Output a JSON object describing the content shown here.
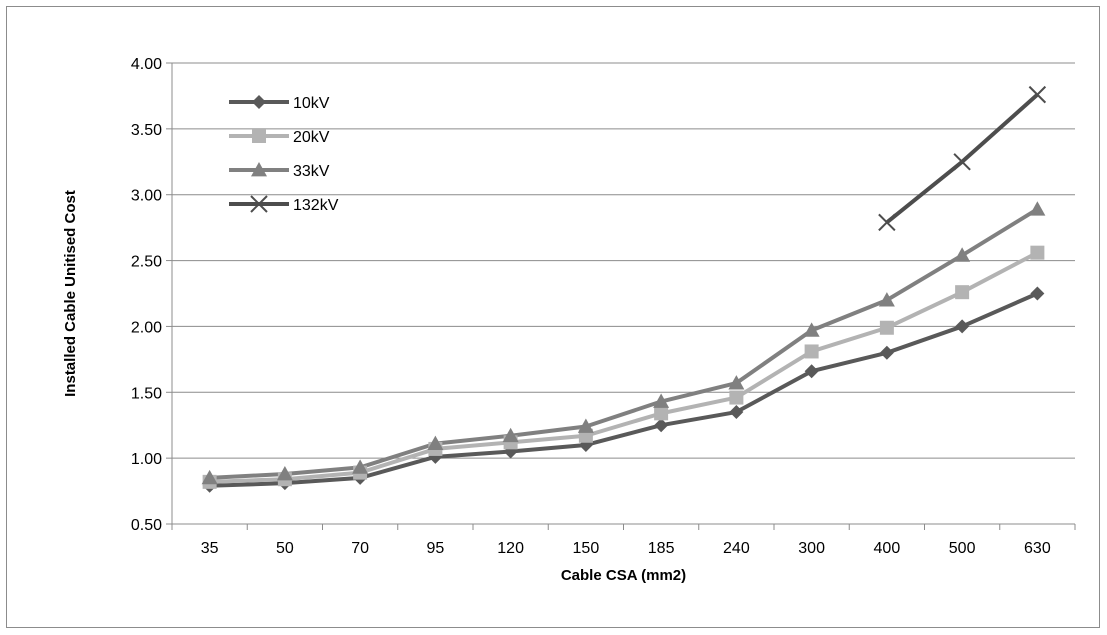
{
  "chart_data": {
    "type": "line",
    "categories": [
      "35",
      "50",
      "70",
      "95",
      "120",
      "150",
      "185",
      "240",
      "300",
      "400",
      "500",
      "630"
    ],
    "xlabel": "Cable CSA (mm2)",
    "ylabel": "Installed Cable Unitised Cost",
    "ylim": [
      0.5,
      4.0
    ],
    "yticks": [
      "0.50",
      "1.00",
      "1.50",
      "2.00",
      "2.50",
      "3.00",
      "3.50",
      "4.00"
    ],
    "grid": true,
    "legend": "top-left",
    "series": [
      {
        "name": "10kV",
        "color": "#595959",
        "marker": "diamond",
        "values": [
          0.79,
          0.81,
          0.85,
          1.01,
          1.05,
          1.1,
          1.25,
          1.35,
          1.66,
          1.8,
          2.0,
          2.25
        ]
      },
      {
        "name": "20kV",
        "color": "#b3b3b3",
        "marker": "square",
        "values": [
          0.82,
          0.84,
          0.89,
          1.07,
          1.12,
          1.17,
          1.34,
          1.46,
          1.81,
          1.99,
          2.26,
          2.56
        ]
      },
      {
        "name": "33kV",
        "color": "#808080",
        "marker": "triangle",
        "values": [
          0.85,
          0.88,
          0.93,
          1.11,
          1.17,
          1.24,
          1.43,
          1.57,
          1.97,
          2.2,
          2.54,
          2.89
        ]
      },
      {
        "name": "132kV",
        "color": "#4d4d4d",
        "marker": "x",
        "values": [
          null,
          null,
          null,
          null,
          null,
          null,
          null,
          null,
          null,
          2.79,
          3.25,
          3.76
        ]
      }
    ]
  }
}
